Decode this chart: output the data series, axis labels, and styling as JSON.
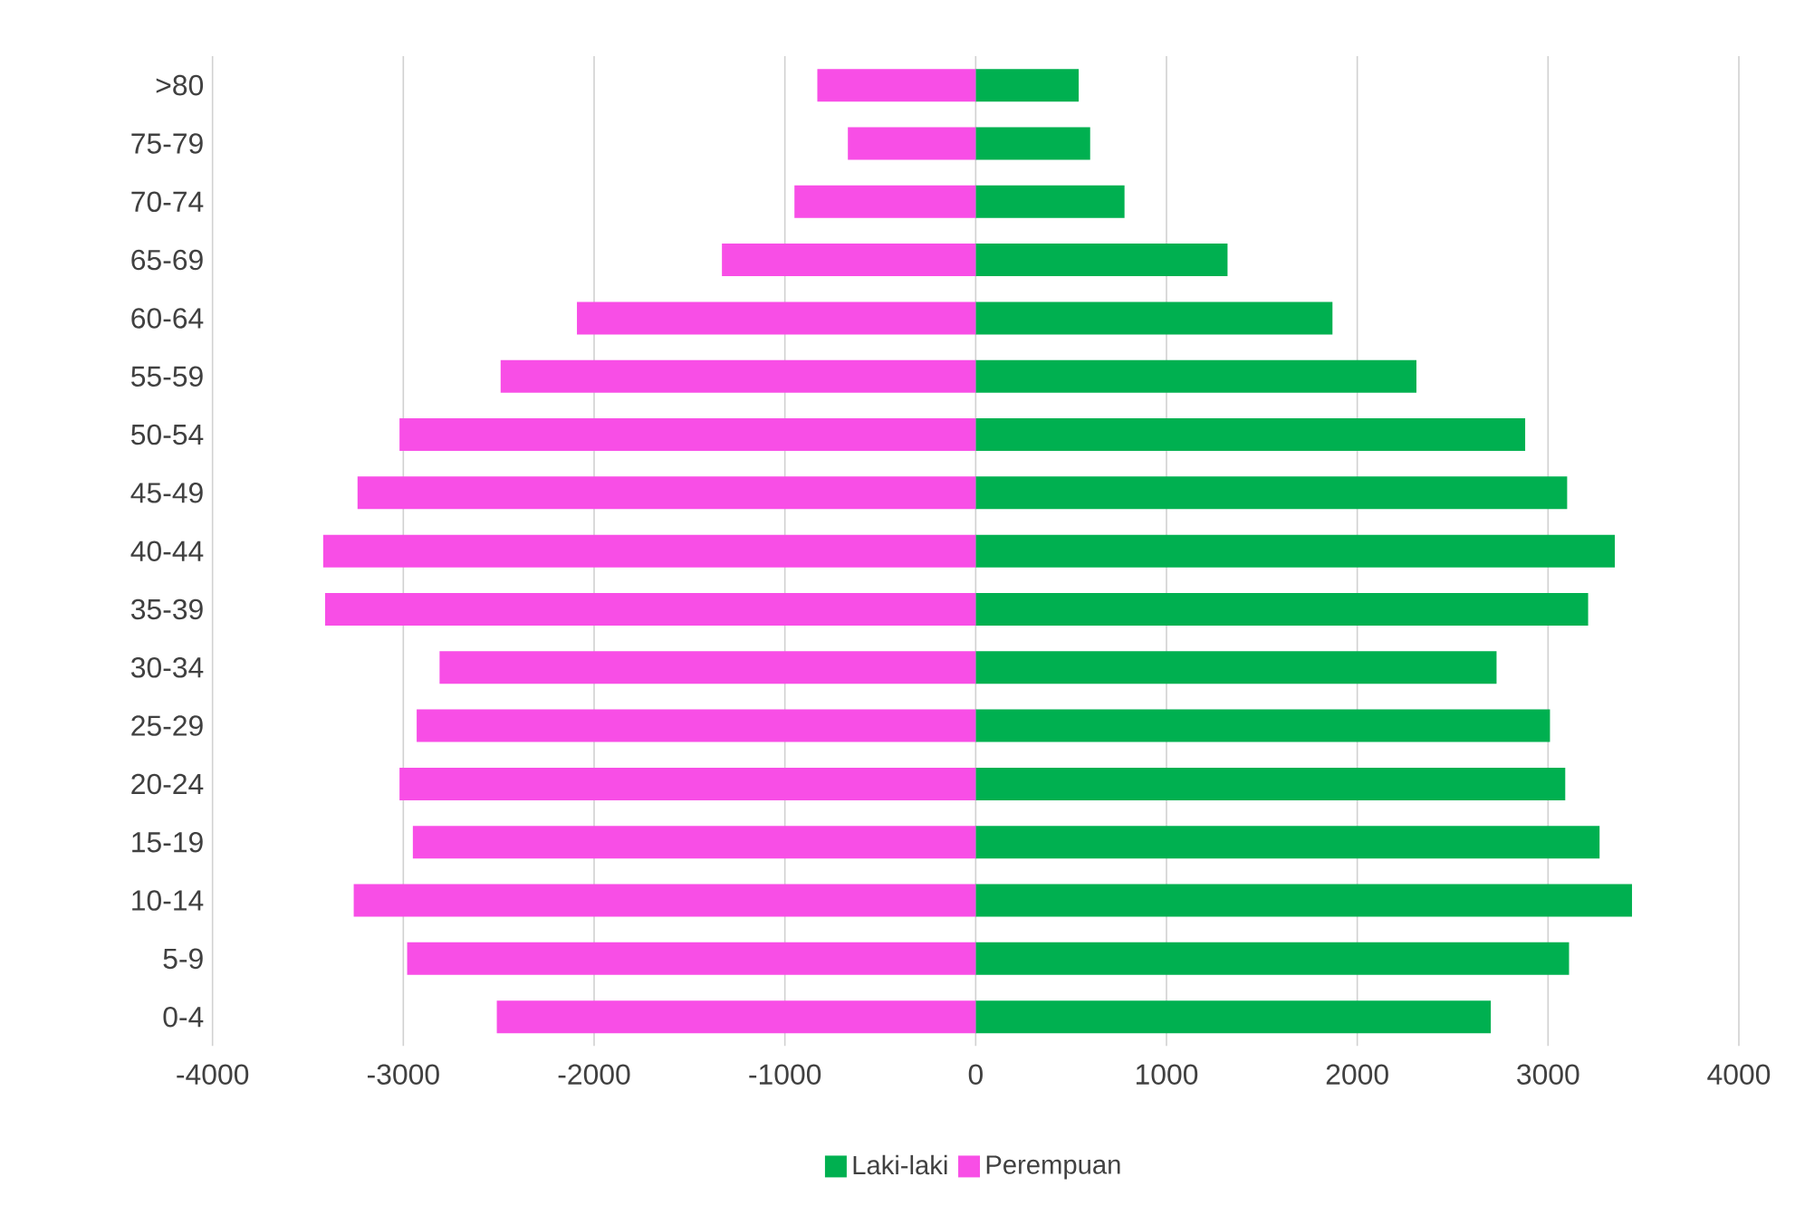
{
  "chart_data": {
    "type": "bar",
    "orientation": "horizontal",
    "categories": [
      ">80",
      "75-79",
      "70-74",
      "65-69",
      "60-64",
      "55-59",
      "50-54",
      "45-49",
      "40-44",
      "35-39",
      "30-34",
      "25-29",
      "20-24",
      "15-19",
      "10-14",
      "5-9",
      "0-4"
    ],
    "series": [
      {
        "name": "Laki-laki",
        "color": "#00b050",
        "values": [
          540,
          600,
          780,
          1320,
          1870,
          2310,
          2880,
          3100,
          3350,
          3210,
          2730,
          3010,
          3090,
          3270,
          3440,
          3110,
          2700
        ]
      },
      {
        "name": "Perempuan",
        "color": "#f84ee6",
        "values": [
          -830,
          -670,
          -950,
          -1330,
          -2090,
          -2490,
          -3020,
          -3240,
          -3420,
          -3410,
          -2810,
          -2930,
          -3020,
          -2950,
          -3260,
          -2980,
          -2510
        ]
      }
    ],
    "xlim": [
      -4000,
      4000
    ],
    "xticks": [
      -4000,
      -3000,
      -2000,
      -1000,
      0,
      1000,
      2000,
      3000,
      4000
    ],
    "stacked": true,
    "grid": "x",
    "legend": "bottom"
  }
}
